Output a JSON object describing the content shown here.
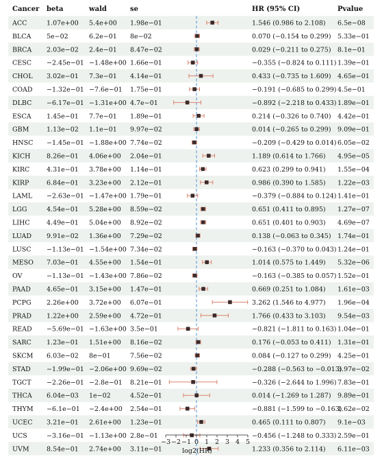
{
  "chart_data": {
    "type": "forest",
    "columns": [
      "Cancer",
      "beta",
      "wald",
      "se",
      "HR (95% CI)",
      "Pvalue"
    ],
    "xlabel": "log2(HR)",
    "xlim": [
      -3,
      5
    ],
    "xticks": [
      "−3",
      "−2",
      "−1",
      "0",
      "1",
      "2",
      "3",
      "4",
      "5"
    ],
    "reference_line": 0,
    "rows": [
      {
        "cancer": "ACC",
        "beta": "1.07e+00",
        "wald": "5.4e+00",
        "se": "1.98e−01",
        "hr": 1.546,
        "lo": 0.986,
        "hi": 2.108,
        "hr_text": "1.546 (0.986 to 2.108)",
        "p": "6.5e−08"
      },
      {
        "cancer": "BLCA",
        "beta": "5e−02",
        "wald": "6.2e−01",
        "se": "8e−02",
        "hr": 0.07,
        "lo": -0.154,
        "hi": 0.299,
        "hr_text": "0.070 (−0.154 to 0.299)",
        "p": "5.33e−01"
      },
      {
        "cancer": "BRCA",
        "beta": "2.03e−02",
        "wald": "2.4e−01",
        "se": "8.47e−02",
        "hr": 0.029,
        "lo": -0.211,
        "hi": 0.275,
        "hr_text": "0.029 (−0.211 to 0.275)",
        "p": "8.1e−01"
      },
      {
        "cancer": "CESC",
        "beta": "−2.45e−01",
        "wald": "−1.48e+00",
        "se": "1.66e−01",
        "hr": -0.355,
        "lo": -0.824,
        "hi": 0.111,
        "hr_text": "−0.355 (−0.824 to 0.111)",
        "p": "1.39e−01"
      },
      {
        "cancer": "CHOL",
        "beta": "3.02e−01",
        "wald": "7.3e−01",
        "se": "4.14e−01",
        "hr": 0.433,
        "lo": -0.735,
        "hi": 1.609,
        "hr_text": "0.433 (−0.735 to 1.609)",
        "p": "4.65e−01"
      },
      {
        "cancer": "COAD",
        "beta": "−1.32e−01",
        "wald": "−7.6e−01",
        "se": "1.75e−01",
        "hr": -0.191,
        "lo": -0.685,
        "hi": 0.299,
        "hr_text": "−0.191 (−0.685 to 0.299)",
        "p": "4.5e−01"
      },
      {
        "cancer": "DLBC",
        "beta": "−6.17e−01",
        "wald": "−1.31e+00",
        "se": "4.7e−01",
        "hr": -0.892,
        "lo": -2.218,
        "hi": 0.433,
        "hr_text": "−0.892 (−2.218 to 0.433)",
        "p": "1.89e−01"
      },
      {
        "cancer": "ESCA",
        "beta": "1.45e−01",
        "wald": "7.7e−01",
        "se": "1.89e−01",
        "hr": 0.214,
        "lo": -0.326,
        "hi": 0.74,
        "hr_text": "0.214 (−0.326 to 0.740)",
        "p": "4.42e−01"
      },
      {
        "cancer": "GBM",
        "beta": "1.13e−02",
        "wald": "1.1e−01",
        "se": "9.97e−02",
        "hr": 0.014,
        "lo": -0.265,
        "hi": 0.299,
        "hr_text": "0.014 (−0.265 to 0.299)",
        "p": "9.09e−01"
      },
      {
        "cancer": "HNSC",
        "beta": "−1.45e−01",
        "wald": "−1.88e+00",
        "se": "7.74e−02",
        "hr": -0.209,
        "lo": -0.429,
        "hi": 0.014,
        "hr_text": "−0.209 (−0.429 to 0.014)",
        "p": "6.05e−02"
      },
      {
        "cancer": "KICH",
        "beta": "8.26e−01",
        "wald": "4.06e+00",
        "se": "2.04e−01",
        "hr": 1.189,
        "lo": 0.614,
        "hi": 1.766,
        "hr_text": "1.189 (0.614 to 1.766)",
        "p": "4.95e−05"
      },
      {
        "cancer": "KIRC",
        "beta": "4.31e−01",
        "wald": "3.78e+00",
        "se": "1.14e−01",
        "hr": 0.623,
        "lo": 0.299,
        "hi": 0.941,
        "hr_text": "0.623 (0.299 to 0.941)",
        "p": "1.55e−04"
      },
      {
        "cancer": "KIRP",
        "beta": "6.84e−01",
        "wald": "3.23e+00",
        "se": "2.12e−01",
        "hr": 0.986,
        "lo": 0.39,
        "hi": 1.585,
        "hr_text": "0.986 (0.390 to 1.585)",
        "p": "1.22e−03"
      },
      {
        "cancer": "LAML",
        "beta": "−2.63e−01",
        "wald": "−1.47e+00",
        "se": "1.79e−01",
        "hr": -0.379,
        "lo": -0.884,
        "hi": 0.124,
        "hr_text": "−0.379 (−0.884 to 0.124)",
        "p": "1.41e−01"
      },
      {
        "cancer": "LGG",
        "beta": "4.54e−01",
        "wald": "5.28e+00",
        "se": "8.59e−02",
        "hr": 0.651,
        "lo": 0.411,
        "hi": 0.895,
        "hr_text": "0.651 (0.411 to 0.895)",
        "p": "1.27e−07"
      },
      {
        "cancer": "LIHC",
        "beta": "4.49e−01",
        "wald": "5.04e+00",
        "se": "8.92e−02",
        "hr": 0.651,
        "lo": 0.401,
        "hi": 0.903,
        "hr_text": "0.651 (0.401 to 0.903)",
        "p": "4.69e−07"
      },
      {
        "cancer": "LUAD",
        "beta": "9.91e−02",
        "wald": "1.36e+00",
        "se": "7.29e−02",
        "hr": 0.138,
        "lo": -0.063,
        "hi": 0.345,
        "hr_text": "0.138 (−0.063 to 0.345)",
        "p": "1.74e−01"
      },
      {
        "cancer": "LUSC",
        "beta": "−1.13e−01",
        "wald": "−1.54e+00",
        "se": "7.34e−02",
        "hr": -0.163,
        "lo": -0.37,
        "hi": 0.043,
        "hr_text": "−0.163 (−0.370 to 0.043)",
        "p": "1.24e−01"
      },
      {
        "cancer": "MESO",
        "beta": "7.03e−01",
        "wald": "4.55e+00",
        "se": "1.54e−01",
        "hr": 1.014,
        "lo": 0.575,
        "hi": 1.449,
        "hr_text": "1.014 (0.575 to 1.449)",
        "p": "5.32e−06"
      },
      {
        "cancer": "OV",
        "beta": "−1.13e−01",
        "wald": "−1.43e+00",
        "se": "7.86e−02",
        "hr": -0.163,
        "lo": -0.385,
        "hi": 0.057,
        "hr_text": "−0.163 (−0.385 to 0.057)",
        "p": "1.52e−01"
      },
      {
        "cancer": "PAAD",
        "beta": "4.65e−01",
        "wald": "3.15e+00",
        "se": "1.47e−01",
        "hr": 0.669,
        "lo": 0.251,
        "hi": 1.084,
        "hr_text": "0.669 (0.251 to 1.084)",
        "p": "1.61e−03"
      },
      {
        "cancer": "PCPG",
        "beta": "2.26e+00",
        "wald": "3.72e+00",
        "se": "6.07e−01",
        "hr": 3.262,
        "lo": 1.546,
        "hi": 4.977,
        "hr_text": "3.262 (1.546 to 4.977)",
        "p": "1.96e−04"
      },
      {
        "cancer": "PRAD",
        "beta": "1.22e+00",
        "wald": "2.59e+00",
        "se": "4.72e−01",
        "hr": 1.766,
        "lo": 0.433,
        "hi": 3.103,
        "hr_text": "1.766 (0.433 to 3.103)",
        "p": "9.54e−03"
      },
      {
        "cancer": "READ",
        "beta": "−5.69e−01",
        "wald": "−1.63e+00",
        "se": "3.5e−01",
        "hr": -0.821,
        "lo": -1.811,
        "hi": 0.163,
        "hr_text": "−0.821 (−1.811 to 0.163)",
        "p": "1.04e−01"
      },
      {
        "cancer": "SARC",
        "beta": "1.23e−01",
        "wald": "1.51e+00",
        "se": "8.16e−02",
        "hr": 0.176,
        "lo": -0.053,
        "hi": 0.411,
        "hr_text": "0.176 (−0.053 to 0.411)",
        "p": "1.31e−01"
      },
      {
        "cancer": "SKCM",
        "beta": "6.03e−02",
        "wald": "8e−01",
        "se": "7.56e−02",
        "hr": 0.084,
        "lo": -0.127,
        "hi": 0.299,
        "hr_text": "0.084 (−0.127 to 0.299)",
        "p": "4.25e−01"
      },
      {
        "cancer": "STAD",
        "beta": "−1.99e−01",
        "wald": "−2.06e+00",
        "se": "9.69e−02",
        "hr": -0.288,
        "lo": -0.563,
        "hi": -0.013,
        "hr_text": "−0.288 (−0.563 to −0.013)",
        "p": "3.97e−02"
      },
      {
        "cancer": "TGCT",
        "beta": "−2.26e−01",
        "wald": "−2.8e−01",
        "se": "8.21e−01",
        "hr": -0.326,
        "lo": -2.644,
        "hi": 1.996,
        "hr_text": "−0.326 (−2.644 to 1.996)",
        "p": "7.83e−01"
      },
      {
        "cancer": "THCA",
        "beta": "6.04e−03",
        "wald": "1e−02",
        "se": "4.52e−01",
        "hr": 0.014,
        "lo": -1.269,
        "hi": 1.287,
        "hr_text": "0.014 (−1.269 to 1.287)",
        "p": "9.89e−01"
      },
      {
        "cancer": "THYM",
        "beta": "−6.1e−01",
        "wald": "−2.4e+00",
        "se": "2.54e−01",
        "hr": -0.881,
        "lo": -1.599,
        "hi": -0.163,
        "hr_text": "−0.881 (−1.599 to −0.163)",
        "p": "1.62e−02"
      },
      {
        "cancer": "UCEC",
        "beta": "3.21e−01",
        "wald": "2.61e+00",
        "se": "1.23e−01",
        "hr": 0.465,
        "lo": 0.111,
        "hi": 0.807,
        "hr_text": "0.465 (0.111 to 0.807)",
        "p": "9.1e−03"
      },
      {
        "cancer": "UCS",
        "beta": "−3.16e−01",
        "wald": "−1.13e+00",
        "se": "2.8e−01",
        "hr": -0.456,
        "lo": -1.248,
        "hi": 0.333,
        "hr_text": "−0.456 (−1.248 to 0.333)",
        "p": "2.59e−01"
      },
      {
        "cancer": "UVM",
        "beta": "8.54e−01",
        "wald": "2.74e+00",
        "se": "3.11e−01",
        "hr": 1.233,
        "lo": 0.356,
        "hi": 2.114,
        "hr_text": "1.233 (0.356 to 2.114)",
        "p": "6.11e−03"
      }
    ]
  },
  "colors": {
    "stripe": "#eef2ee",
    "ci_line": "#d9826b",
    "point": "#3d2b2b",
    "reference_line": "#4a90d9",
    "text": "#111111"
  }
}
